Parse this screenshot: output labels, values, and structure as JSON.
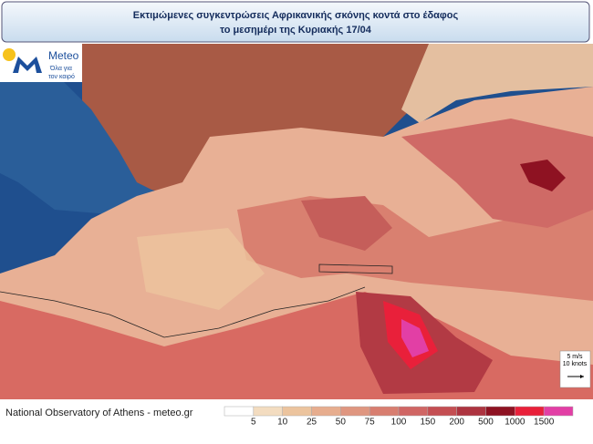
{
  "header": {
    "title_line1": "Εκτιμώμενες συγκεντρώσεις Αφρικανικής σκόνης κοντά στο έδαφος",
    "title_line2": "το μεσημέρι της Κυριακής 17/04"
  },
  "logo": {
    "name": "Meteo",
    "tagline_line1": "Όλα για",
    "tagline_line2": "τον καιρό"
  },
  "wind_scale": {
    "speed": "5 m/s",
    "knots": "10 knots"
  },
  "footer": {
    "credit": "National Observatory of Athens - meteo.gr"
  },
  "legend": {
    "colors": [
      "#ffffff",
      "#f3dcc0",
      "#ecc49e",
      "#e7ad8e",
      "#df9680",
      "#d87e70",
      "#d06664",
      "#c44e52",
      "#ad3440",
      "#8e1222",
      "#e9203a",
      "#e23fa5"
    ],
    "labels": [
      5,
      10,
      25,
      50,
      75,
      100,
      150,
      200,
      500,
      1000,
      1500
    ]
  }
}
